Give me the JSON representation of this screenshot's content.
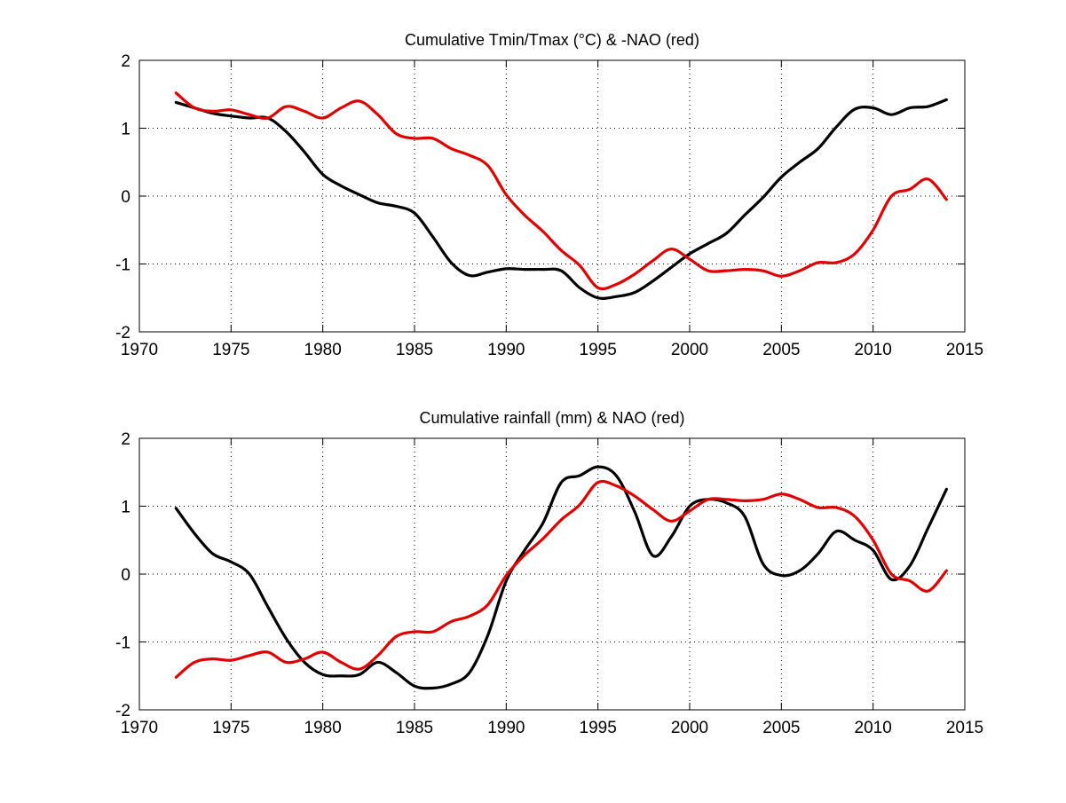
{
  "chart_data": [
    {
      "type": "line",
      "title": "Cumulative Tmin/Tmax (°C) & -NAO (red)",
      "xlabel": "",
      "ylabel": "",
      "xlim": [
        1970,
        2015
      ],
      "ylim": [
        -2,
        2
      ],
      "xticks": [
        1970,
        1975,
        1980,
        1985,
        1990,
        1995,
        2000,
        2005,
        2010,
        2015
      ],
      "yticks": [
        -2,
        -1,
        0,
        1,
        2
      ],
      "grid": true,
      "series": [
        {
          "color": "#000000",
          "x": [
            1972,
            1973,
            1974,
            1975,
            1976,
            1977,
            1978,
            1979,
            1980,
            1981,
            1982,
            1983,
            1984,
            1985,
            1986,
            1987,
            1988,
            1989,
            1990,
            1991,
            1992,
            1993,
            1994,
            1995,
            1996,
            1997,
            1998,
            1999,
            2000,
            2001,
            2002,
            2003,
            2004,
            2005,
            2006,
            2007,
            2008,
            2009,
            2010,
            2011,
            2012,
            2013,
            2014
          ],
          "y": [
            1.38,
            1.3,
            1.22,
            1.18,
            1.15,
            1.15,
            0.95,
            0.65,
            0.32,
            0.15,
            0.02,
            -0.1,
            -0.15,
            -0.25,
            -0.6,
            -0.98,
            -1.17,
            -1.12,
            -1.07,
            -1.08,
            -1.08,
            -1.1,
            -1.35,
            -1.5,
            -1.48,
            -1.42,
            -1.25,
            -1.05,
            -0.85,
            -0.7,
            -0.55,
            -0.28,
            -0.02,
            0.28,
            0.5,
            0.7,
            1.02,
            1.28,
            1.3,
            1.2,
            1.3,
            1.32,
            1.42
          ]
        },
        {
          "color": "#e00000",
          "x": [
            1972,
            1973,
            1974,
            1975,
            1976,
            1977,
            1978,
            1979,
            1980,
            1981,
            1982,
            1983,
            1984,
            1985,
            1986,
            1987,
            1988,
            1989,
            1990,
            1991,
            1992,
            1993,
            1994,
            1995,
            1996,
            1997,
            1998,
            1999,
            2000,
            2001,
            2002,
            2003,
            2004,
            2005,
            2006,
            2007,
            2008,
            2009,
            2010,
            2011,
            2012,
            2013,
            2014
          ],
          "y": [
            1.52,
            1.3,
            1.25,
            1.27,
            1.2,
            1.15,
            1.32,
            1.25,
            1.15,
            1.3,
            1.4,
            1.2,
            0.92,
            0.85,
            0.85,
            0.7,
            0.6,
            0.45,
            0.02,
            -0.28,
            -0.52,
            -0.8,
            -1.02,
            -1.35,
            -1.3,
            -1.15,
            -0.95,
            -0.78,
            -0.93,
            -1.1,
            -1.1,
            -1.08,
            -1.1,
            -1.18,
            -1.1,
            -0.98,
            -0.98,
            -0.85,
            -0.5,
            0.0,
            0.1,
            0.25,
            -0.05
          ]
        }
      ]
    },
    {
      "type": "line",
      "title": "Cumulative rainfall (mm) & NAO (red)",
      "xlabel": "",
      "ylabel": "",
      "xlim": [
        1970,
        2015
      ],
      "ylim": [
        -2,
        2
      ],
      "xticks": [
        1970,
        1975,
        1980,
        1985,
        1990,
        1995,
        2000,
        2005,
        2010,
        2015
      ],
      "yticks": [
        -2,
        -1,
        0,
        1,
        2
      ],
      "grid": true,
      "series": [
        {
          "color": "#000000",
          "x": [
            1972,
            1973,
            1974,
            1975,
            1976,
            1977,
            1978,
            1979,
            1980,
            1981,
            1982,
            1983,
            1984,
            1985,
            1986,
            1987,
            1988,
            1989,
            1990,
            1991,
            1992,
            1993,
            1994,
            1995,
            1996,
            1997,
            1998,
            1999,
            2000,
            2001,
            2002,
            2003,
            2004,
            2005,
            2006,
            2007,
            2008,
            2009,
            2010,
            2011,
            2012,
            2013,
            2014
          ],
          "y": [
            0.97,
            0.6,
            0.3,
            0.18,
            0.0,
            -0.48,
            -0.95,
            -1.3,
            -1.48,
            -1.5,
            -1.48,
            -1.3,
            -1.45,
            -1.65,
            -1.68,
            -1.62,
            -1.45,
            -0.9,
            -0.1,
            0.35,
            0.75,
            1.35,
            1.45,
            1.58,
            1.45,
            0.92,
            0.27,
            0.55,
            1.0,
            1.1,
            1.05,
            0.85,
            0.15,
            -0.02,
            0.05,
            0.3,
            0.63,
            0.5,
            0.35,
            -0.08,
            0.12,
            0.68,
            1.25
          ]
        },
        {
          "color": "#e00000",
          "x": [
            1972,
            1973,
            1974,
            1975,
            1976,
            1977,
            1978,
            1979,
            1980,
            1981,
            1982,
            1983,
            1984,
            1985,
            1986,
            1987,
            1988,
            1989,
            1990,
            1991,
            1992,
            1993,
            1994,
            1995,
            1996,
            1997,
            1998,
            1999,
            2000,
            2001,
            2002,
            2003,
            2004,
            2005,
            2006,
            2007,
            2008,
            2009,
            2010,
            2011,
            2012,
            2013,
            2014
          ],
          "y": [
            -1.52,
            -1.3,
            -1.25,
            -1.27,
            -1.2,
            -1.15,
            -1.3,
            -1.25,
            -1.15,
            -1.3,
            -1.4,
            -1.2,
            -0.92,
            -0.85,
            -0.85,
            -0.7,
            -0.62,
            -0.45,
            -0.02,
            0.28,
            0.52,
            0.8,
            1.02,
            1.35,
            1.3,
            1.15,
            0.95,
            0.78,
            0.93,
            1.1,
            1.1,
            1.08,
            1.1,
            1.18,
            1.1,
            0.98,
            0.98,
            0.85,
            0.5,
            0.0,
            -0.1,
            -0.25,
            0.05
          ]
        }
      ]
    }
  ]
}
